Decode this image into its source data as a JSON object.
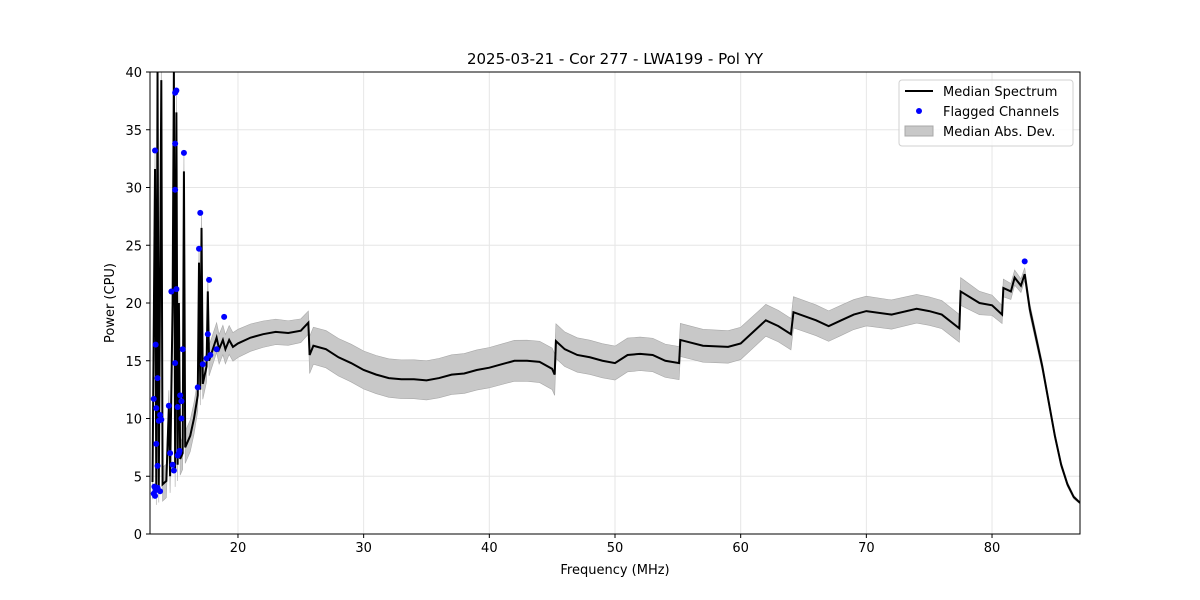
{
  "chart_data": {
    "type": "line",
    "title": "2025-03-21 - Cor 277 - LWA199 - Pol YY",
    "xlabel": "Frequency (MHz)",
    "ylabel": "Power (CPU)",
    "xlim": [
      13.0,
      87.0
    ],
    "ylim": [
      0,
      40
    ],
    "xticks": [
      20,
      30,
      40,
      50,
      60,
      70,
      80
    ],
    "yticks": [
      0,
      5,
      10,
      15,
      20,
      25,
      30,
      35,
      40
    ],
    "grid": true,
    "legend": {
      "placement": "top-right",
      "entries": [
        "Median Spectrum",
        "Flagged Channels",
        "Median Abs. Dev."
      ]
    },
    "colors": {
      "median": "#000000",
      "flagged": "#0000ff",
      "mad": "#c8c8c8"
    },
    "median_spectrum": [
      [
        13.2,
        4.5
      ],
      [
        13.4,
        31.6
      ],
      [
        13.5,
        4
      ],
      [
        13.6,
        40
      ],
      [
        13.7,
        4.2
      ],
      [
        13.9,
        39.3
      ],
      [
        14.0,
        4.3
      ],
      [
        14.3,
        4.6
      ],
      [
        14.5,
        11
      ],
      [
        14.6,
        5
      ],
      [
        14.8,
        20
      ],
      [
        14.9,
        40
      ],
      [
        15.0,
        5.5
      ],
      [
        15.1,
        36.5
      ],
      [
        15.2,
        6
      ],
      [
        15.3,
        20
      ],
      [
        15.4,
        6.5
      ],
      [
        15.6,
        7
      ],
      [
        15.7,
        31.4
      ],
      [
        15.8,
        7.5
      ],
      [
        16.2,
        8.5
      ],
      [
        16.5,
        10
      ],
      [
        16.8,
        12
      ],
      [
        16.9,
        23.5
      ],
      [
        17.0,
        12.5
      ],
      [
        17.1,
        26.5
      ],
      [
        17.2,
        13
      ],
      [
        17.5,
        14.5
      ],
      [
        17.6,
        21
      ],
      [
        17.7,
        15
      ],
      [
        18,
        16
      ],
      [
        18.3,
        17
      ],
      [
        18.5,
        16
      ],
      [
        18.8,
        16.8
      ],
      [
        19,
        16
      ],
      [
        19.3,
        16.8
      ],
      [
        19.6,
        16.2
      ],
      [
        20,
        16.5
      ],
      [
        21,
        17
      ],
      [
        22,
        17.3
      ],
      [
        23,
        17.5
      ],
      [
        24,
        17.4
      ],
      [
        25,
        17.6
      ],
      [
        25.6,
        18.3
      ],
      [
        25.7,
        15.5
      ],
      [
        26,
        16.3
      ],
      [
        27,
        16
      ],
      [
        28,
        15.3
      ],
      [
        29,
        14.8
      ],
      [
        30,
        14.2
      ],
      [
        31,
        13.8
      ],
      [
        32,
        13.5
      ],
      [
        33,
        13.4
      ],
      [
        34,
        13.4
      ],
      [
        35,
        13.3
      ],
      [
        36,
        13.5
      ],
      [
        37,
        13.8
      ],
      [
        38,
        13.9
      ],
      [
        39,
        14.2
      ],
      [
        40,
        14.4
      ],
      [
        41,
        14.7
      ],
      [
        42,
        15
      ],
      [
        43,
        15
      ],
      [
        44,
        14.9
      ],
      [
        45,
        14.3
      ],
      [
        45.2,
        13.8
      ],
      [
        45.3,
        16.7
      ],
      [
        46,
        16
      ],
      [
        47,
        15.5
      ],
      [
        48,
        15.3
      ],
      [
        49,
        15
      ],
      [
        50,
        14.8
      ],
      [
        51,
        15.5
      ],
      [
        52,
        15.6
      ],
      [
        53,
        15.5
      ],
      [
        54,
        15
      ],
      [
        55.1,
        14.8
      ],
      [
        55.2,
        16.8
      ],
      [
        57,
        16.3
      ],
      [
        59,
        16.2
      ],
      [
        60,
        16.5
      ],
      [
        61,
        17.5
      ],
      [
        62,
        18.5
      ],
      [
        63,
        18
      ],
      [
        64,
        17.3
      ],
      [
        64.2,
        19.2
      ],
      [
        66,
        18.5
      ],
      [
        67,
        18
      ],
      [
        68,
        18.5
      ],
      [
        69,
        19
      ],
      [
        70,
        19.3
      ],
      [
        72,
        19
      ],
      [
        74,
        19.5
      ],
      [
        75,
        19.3
      ],
      [
        76,
        19
      ],
      [
        77.4,
        17.8
      ],
      [
        77.5,
        21
      ],
      [
        79,
        20
      ],
      [
        80,
        19.8
      ],
      [
        80.8,
        19
      ],
      [
        80.9,
        21.3
      ],
      [
        81.5,
        21
      ],
      [
        81.8,
        22.2
      ],
      [
        82.3,
        21.5
      ],
      [
        82.6,
        22.5
      ],
      [
        83,
        19.5
      ],
      [
        83.5,
        17
      ],
      [
        84,
        14.5
      ],
      [
        84.5,
        11.5
      ],
      [
        85,
        8.5
      ],
      [
        85.5,
        6
      ],
      [
        86,
        4.3
      ],
      [
        86.5,
        3.2
      ],
      [
        87,
        2.7
      ]
    ],
    "mad_width": [
      [
        13,
        1.5
      ],
      [
        25.6,
        1.0
      ],
      [
        25.7,
        1.6
      ],
      [
        45.2,
        1.8
      ],
      [
        45.3,
        1.5
      ],
      [
        60,
        1.4
      ],
      [
        77.5,
        1.2
      ],
      [
        83,
        0.5
      ],
      [
        87,
        0.1
      ]
    ],
    "flagged_channels": [
      [
        13.3,
        11.7
      ],
      [
        13.4,
        33.2
      ],
      [
        13.45,
        16.4
      ],
      [
        13.5,
        7.8
      ],
      [
        13.6,
        13.5
      ],
      [
        13.5,
        10.9
      ],
      [
        13.6,
        5.9
      ],
      [
        13.7,
        9.8
      ],
      [
        13.8,
        10.3
      ],
      [
        13.9,
        9.9
      ],
      [
        13.3,
        3.5
      ],
      [
        13.35,
        4.1
      ],
      [
        13.4,
        3.3
      ],
      [
        13.45,
        3.8
      ],
      [
        13.6,
        4
      ],
      [
        13.8,
        3.7
      ],
      [
        14.5,
        11.1
      ],
      [
        14.6,
        7
      ],
      [
        14.7,
        21
      ],
      [
        14.8,
        6
      ],
      [
        14.9,
        5.5
      ],
      [
        15.0,
        38.2
      ],
      [
        15.1,
        38.4
      ],
      [
        15.0,
        33.8
      ],
      [
        15.0,
        29.8
      ],
      [
        15.1,
        21.2
      ],
      [
        15.0,
        14.8
      ],
      [
        15.2,
        11
      ],
      [
        15.3,
        7
      ],
      [
        15.4,
        12
      ],
      [
        15.5,
        11.5
      ],
      [
        15.6,
        16
      ],
      [
        15.7,
        33
      ],
      [
        15.2,
        6.8
      ],
      [
        15.35,
        7.2
      ],
      [
        15.5,
        10
      ],
      [
        16.8,
        12.7
      ],
      [
        16.9,
        24.7
      ],
      [
        17.0,
        27.8
      ],
      [
        17.2,
        14.7
      ],
      [
        17.5,
        15.2
      ],
      [
        17.6,
        17.3
      ],
      [
        17.7,
        22
      ],
      [
        17.8,
        15.5
      ],
      [
        18.3,
        16
      ],
      [
        18.9,
        18.8
      ],
      [
        82.6,
        23.6
      ]
    ]
  }
}
